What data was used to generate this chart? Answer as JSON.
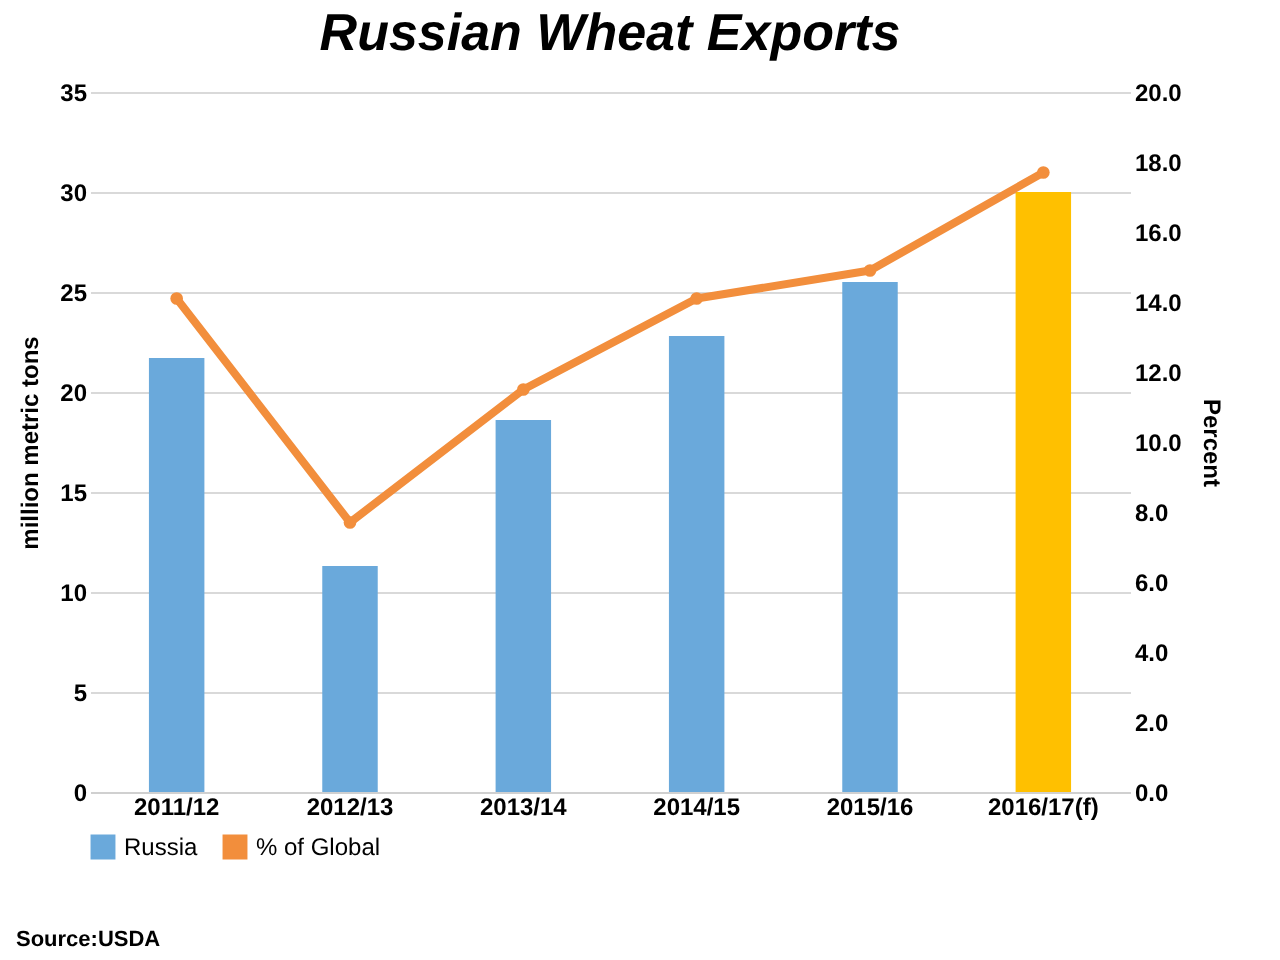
{
  "chart_data": {
    "type": "bar",
    "title": "Russian Wheat Exports",
    "ylabel": "million metric tons",
    "y2label": "Percent",
    "categories": [
      "2011/12",
      "2012/13",
      "2013/14",
      "2014/15",
      "2015/16",
      "2016/17(f)"
    ],
    "series": [
      {
        "name": "Russia",
        "color": "#6aa9db",
        "colors": [
          "#6aa9db",
          "#6aa9db",
          "#6aa9db",
          "#6aa9db",
          "#6aa9db",
          "#ffc000"
        ],
        "values": [
          21.7,
          11.3,
          18.6,
          22.8,
          25.5,
          30.0
        ]
      },
      {
        "name": "% of Global",
        "type": "line",
        "axis": "y2",
        "color": "#f28e3c",
        "marker": "circle",
        "values": [
          14.1,
          7.7,
          11.5,
          14.1,
          14.9,
          17.7
        ]
      }
    ],
    "ylim": [
      0,
      35
    ],
    "yticks": [
      0,
      5,
      10,
      15,
      20,
      25,
      30,
      35
    ],
    "y2lim": [
      0,
      20
    ],
    "y2ticks": [
      {
        "value": 0,
        "label": "0.0"
      },
      {
        "value": 2,
        "label": "2.0"
      },
      {
        "value": 4,
        "label": "4.0"
      },
      {
        "value": 6,
        "label": "6.0"
      },
      {
        "value": 8,
        "label": "8.0"
      },
      {
        "value": 10,
        "label": "10.0"
      },
      {
        "value": 12,
        "label": "12.0"
      },
      {
        "value": 14,
        "label": "14.0"
      },
      {
        "value": 16,
        "label": "16.0"
      },
      {
        "value": 18,
        "label": "18.0"
      },
      {
        "value": 20,
        "label": "20.0"
      }
    ],
    "grid": "y",
    "legend": "bottom",
    "line_style": "solid",
    "annotations": [
      "Source:USDA"
    ]
  }
}
